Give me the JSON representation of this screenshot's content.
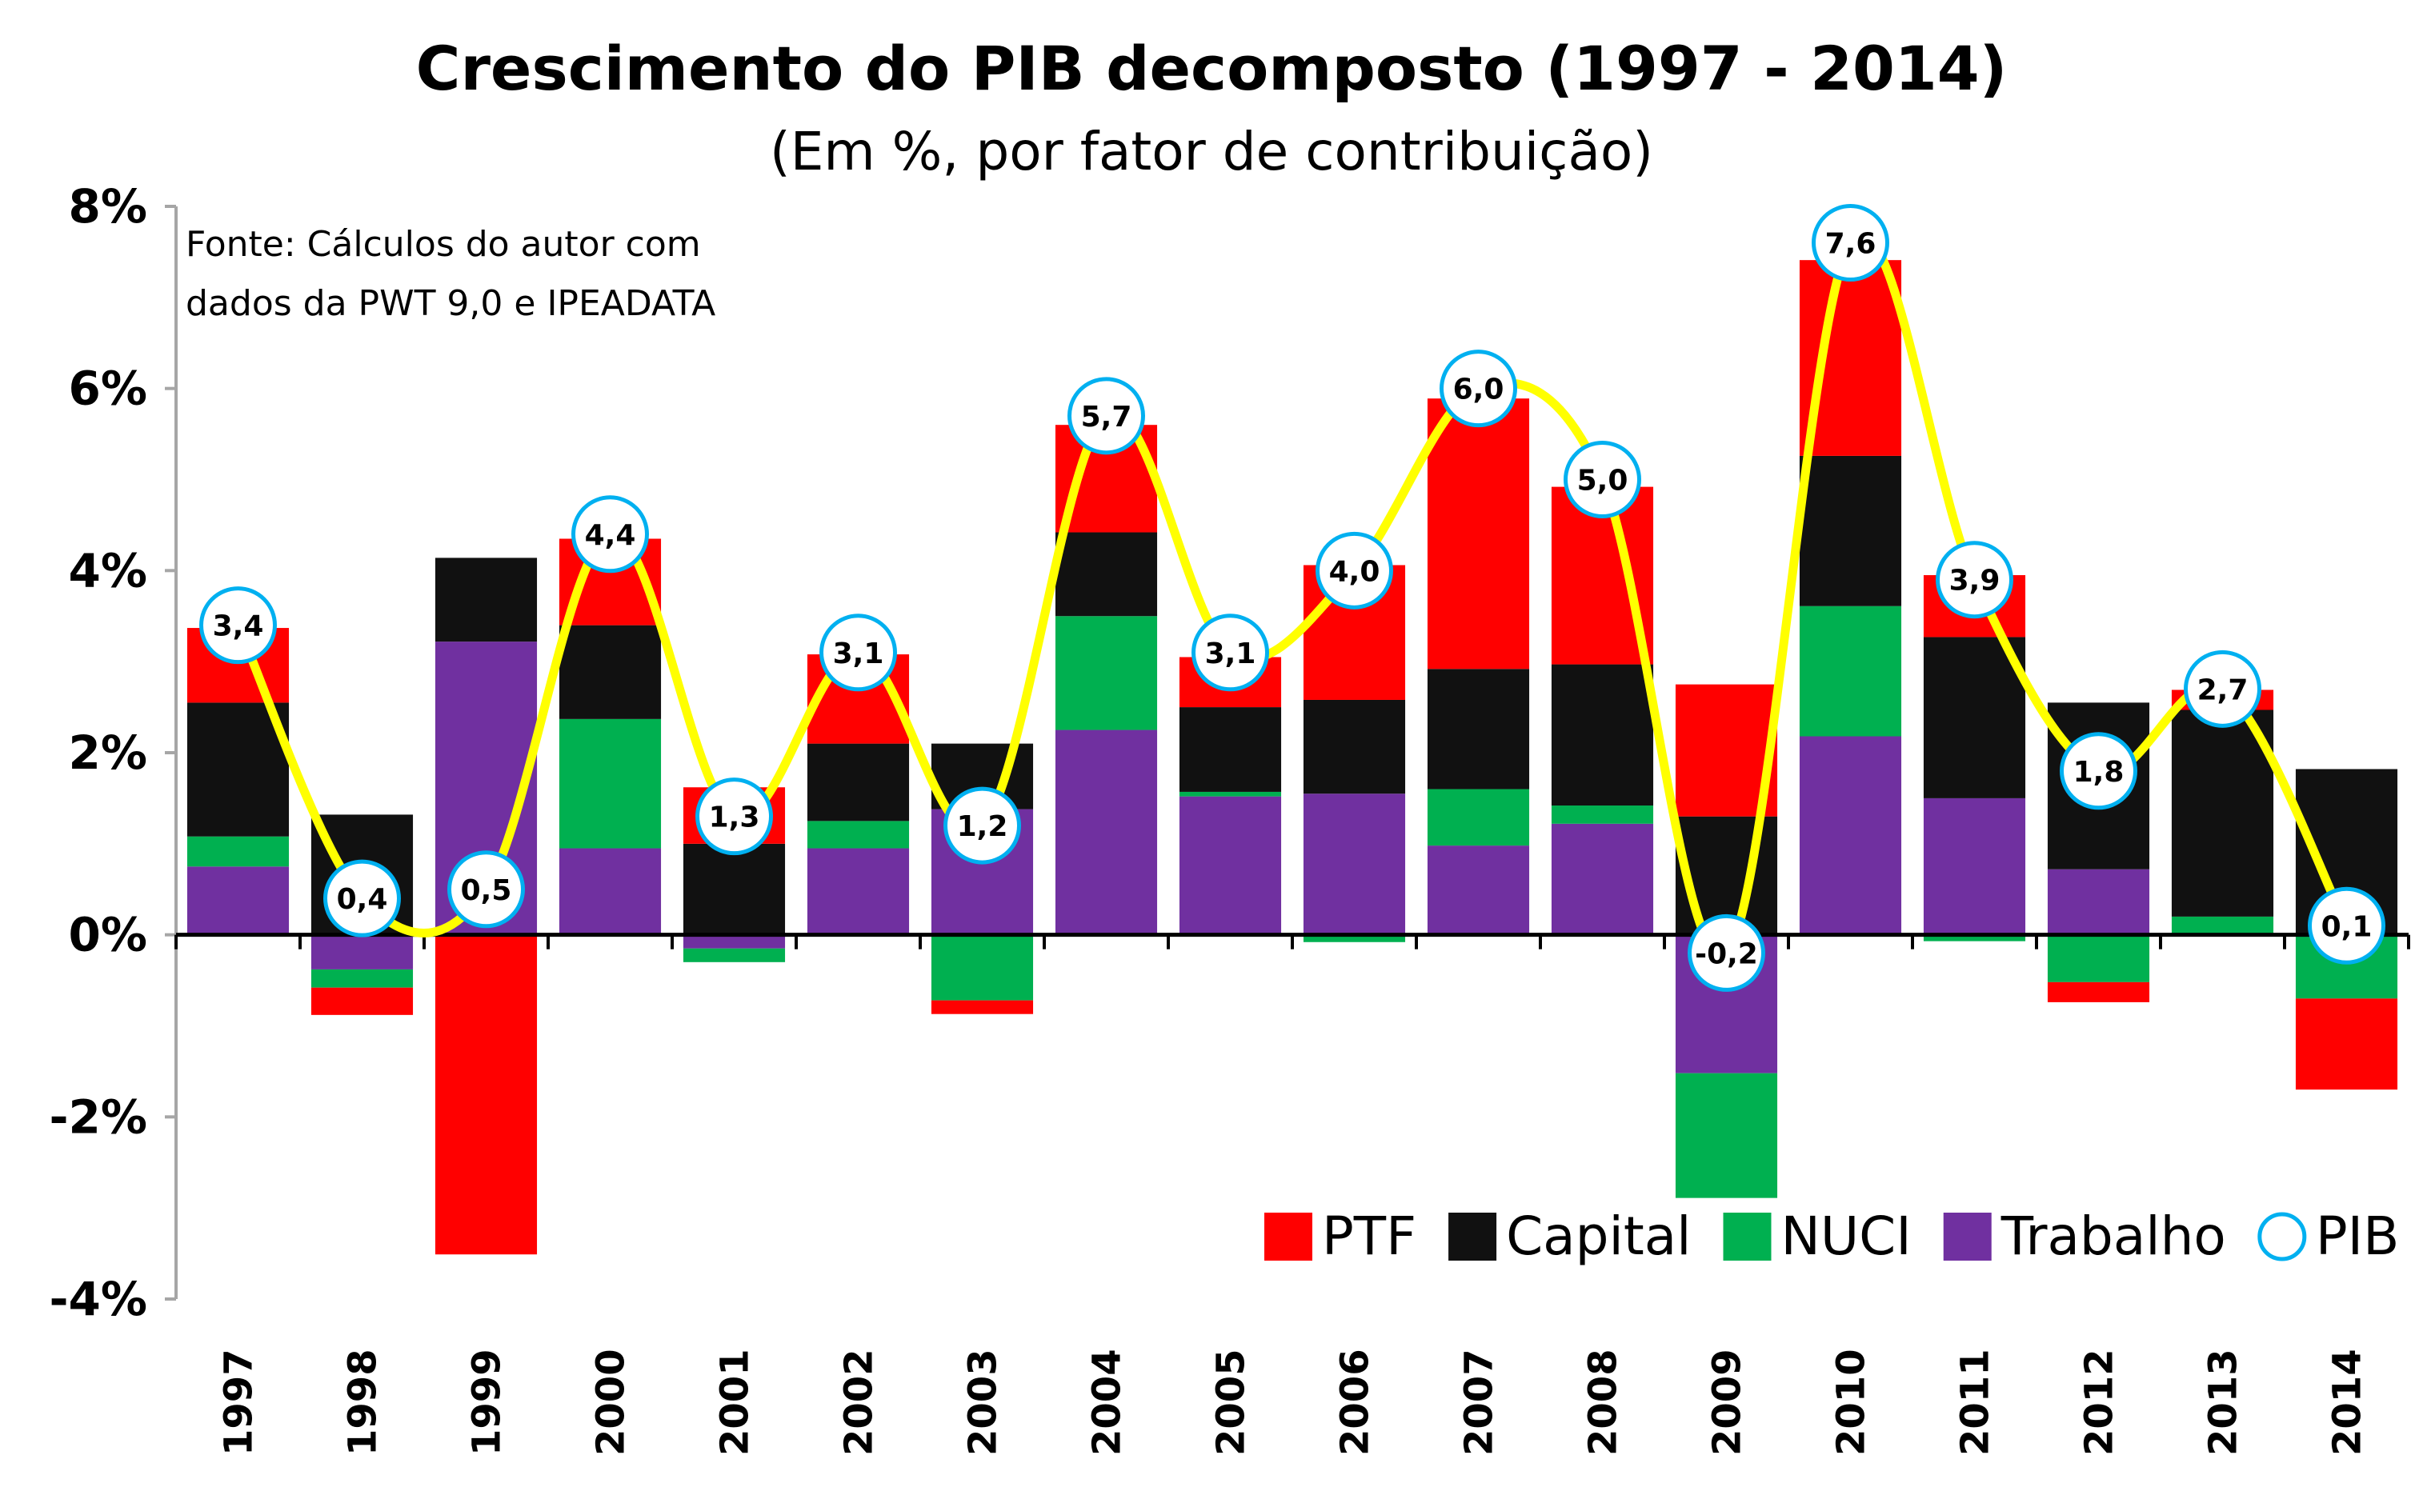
{
  "chart_data": {
    "type": "bar",
    "stacked": true,
    "title": "Crescimento do PIB decomposto (1997 - 2014)",
    "subtitle": "(Em %, por fator de contribuição)",
    "source": [
      "Fonte: Cálculos do autor com",
      "dados da PWT 9,0 e IPEADATA"
    ],
    "ylim": [
      -4,
      8
    ],
    "yticks": [
      8,
      6,
      4,
      2,
      0,
      -2,
      -4
    ],
    "ytick_labels": [
      "8%",
      "6%",
      "4%",
      "2%",
      "0%",
      "-2%",
      "-4%"
    ],
    "categories": [
      "1997",
      "1998",
      "1999",
      "2000",
      "2001",
      "2002",
      "2003",
      "2004",
      "2005",
      "2006",
      "2007",
      "2008",
      "2009",
      "2010",
      "2011",
      "2012",
      "2013",
      "2014"
    ],
    "series": [
      {
        "name": "Trabalho",
        "color": "#7030a0",
        "values": [
          0.75,
          -0.38,
          3.22,
          0.95,
          -0.15,
          0.95,
          1.38,
          2.25,
          1.52,
          1.55,
          0.98,
          1.22,
          -1.52,
          2.18,
          1.5,
          0.72,
          0.0,
          0.0
        ]
      },
      {
        "name": "NUCI",
        "color": "#00b050",
        "values": [
          0.33,
          -0.2,
          0.0,
          1.42,
          -0.15,
          0.3,
          -0.72,
          1.25,
          0.05,
          -0.08,
          0.62,
          0.2,
          -1.37,
          1.43,
          -0.07,
          -0.52,
          0.2,
          -0.7
        ]
      },
      {
        "name": "Capital",
        "color": "#111111",
        "values": [
          1.47,
          1.32,
          0.92,
          1.03,
          1.0,
          0.85,
          0.72,
          0.92,
          0.93,
          1.03,
          1.32,
          1.55,
          1.3,
          1.65,
          1.77,
          1.83,
          2.27,
          1.82
        ]
      },
      {
        "name": "PTF",
        "color": "#ff0000",
        "values": [
          0.82,
          -0.3,
          -3.51,
          0.95,
          0.62,
          0.98,
          -0.15,
          1.18,
          0.55,
          1.48,
          2.97,
          1.95,
          1.45,
          2.15,
          0.68,
          -0.22,
          0.22,
          -1.0
        ]
      }
    ],
    "pib": {
      "name": "PIB",
      "values": [
        3.4,
        0.4,
        0.5,
        4.4,
        1.3,
        3.1,
        1.2,
        5.7,
        3.1,
        4.0,
        6.0,
        5.0,
        -0.2,
        7.6,
        3.9,
        1.8,
        2.7,
        0.1
      ],
      "labels": [
        "3,4",
        "0,4",
        "0,5",
        "4,4",
        "1,3",
        "3,1",
        "1,2",
        "5,7",
        "3,1",
        "4,0",
        "6,0",
        "5,0",
        "-0,2",
        "7,6",
        "3,9",
        "1,8",
        "2,7",
        "0,1"
      ],
      "line_color": "#ffff00",
      "marker_color": "#00b0f0"
    },
    "legend": {
      "placement": "bottom-right",
      "entries": [
        "PTF",
        "Capital",
        "NUCI",
        "Trabalho",
        "PIB"
      ]
    },
    "grid": false
  }
}
